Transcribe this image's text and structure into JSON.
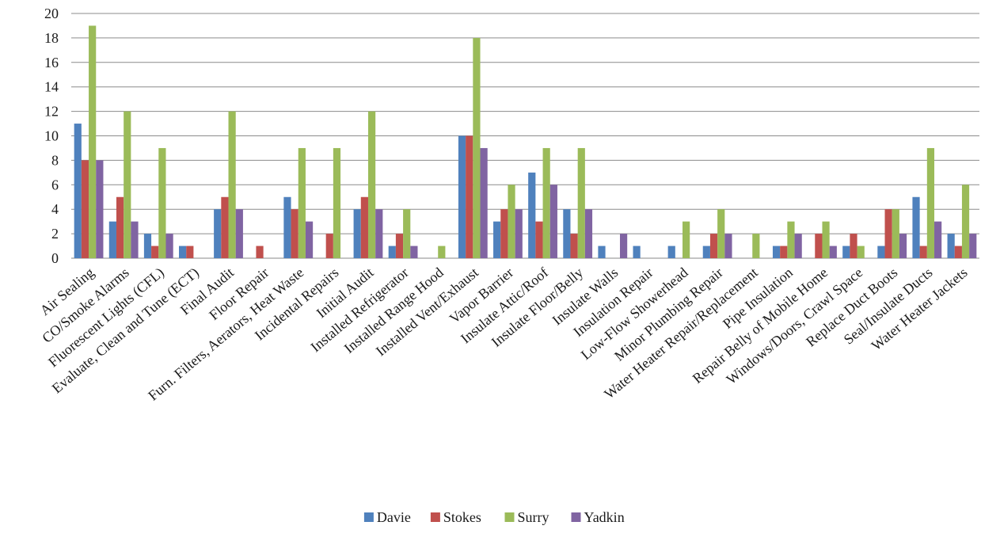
{
  "chart_data": {
    "type": "bar",
    "title": "",
    "xlabel": "",
    "ylabel": "",
    "ylim": [
      0,
      20
    ],
    "yticks": [
      0,
      2,
      4,
      6,
      8,
      10,
      12,
      14,
      16,
      18,
      20
    ],
    "grid": true,
    "legend_position": "bottom",
    "categories": [
      "Air Sealing",
      "CO/Smoke Alarms",
      "Fluorescent Lights (CFL)",
      "Evaluate, Clean and Tune (ECT)",
      "Final Audit",
      "Floor Repair",
      "Furn. Filters, Aerators, Heat Waste",
      "Incidental Repairs",
      "Initial Audit",
      "Installed Refrigerator",
      "Installed Range Hood",
      "Installed Vent/Exhaust",
      "Vapor Barrier",
      "Insulate Attic/Roof",
      "Insulate Floor/Belly",
      "Insulate Walls",
      "Insulation Repair",
      "Low-Flow Showerhead",
      "Minor Plumbing Repair",
      "Water Heater Repair/Replacement",
      "Pipe Insulation",
      "Repair Belly of Mobile Home",
      "Windows/Doors, Crawl Space",
      "Replace Duct Boots",
      "Seal/Insulate Ducts",
      "Water Heater Jackets"
    ],
    "series": [
      {
        "name": "Davie",
        "color": "#4F81BD",
        "values": [
          11,
          3,
          2,
          1,
          4,
          0,
          5,
          0,
          4,
          1,
          0,
          10,
          3,
          7,
          4,
          1,
          1,
          1,
          1,
          0,
          1,
          0,
          1,
          1,
          5,
          2
        ]
      },
      {
        "name": "Stokes",
        "color": "#C0504D",
        "values": [
          8,
          5,
          1,
          1,
          5,
          1,
          4,
          2,
          5,
          2,
          0,
          10,
          4,
          3,
          2,
          0,
          0,
          0,
          2,
          0,
          1,
          2,
          2,
          4,
          1,
          1
        ]
      },
      {
        "name": "Surry",
        "color": "#9BBB59",
        "values": [
          19,
          12,
          9,
          0,
          12,
          0,
          9,
          9,
          12,
          4,
          1,
          18,
          6,
          9,
          9,
          0,
          0,
          3,
          4,
          2,
          3,
          3,
          1,
          4,
          9,
          6
        ]
      },
      {
        "name": "Yadkin",
        "color": "#8064A2",
        "values": [
          8,
          3,
          2,
          0,
          4,
          0,
          3,
          0,
          4,
          1,
          0,
          9,
          4,
          6,
          4,
          2,
          0,
          0,
          2,
          0,
          2,
          1,
          0,
          2,
          3,
          2
        ]
      }
    ]
  }
}
